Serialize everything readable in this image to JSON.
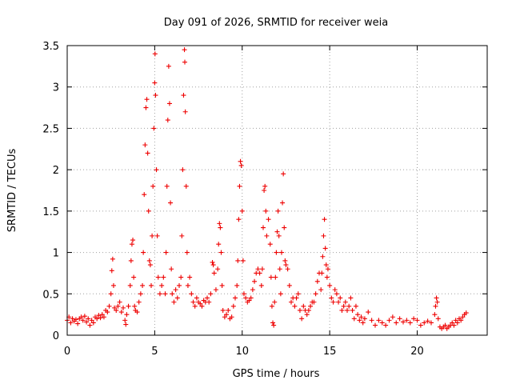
{
  "chart_data": {
    "type": "scatter",
    "title": "Day 091 of 2026, SRMTID for receiver weia",
    "xlabel": "GPS time / hours",
    "ylabel": "SRMTID / TECUs",
    "xlim": [
      0,
      24
    ],
    "ylim": [
      0,
      3.5
    ],
    "xticks": [
      0,
      5,
      10,
      15,
      20
    ],
    "xtick_labels": [
      "0",
      "5",
      "10",
      "15",
      "20"
    ],
    "yticks": [
      0,
      0.5,
      1,
      1.5,
      2,
      2.5,
      3,
      3.5
    ],
    "ytick_labels": [
      "0",
      "0.5",
      "1",
      "1.5",
      "2",
      "2.5",
      "3",
      "3.5"
    ],
    "grid": true,
    "marker": "+",
    "marker_color": "#ee0000",
    "series": [
      {
        "name": "SRMTID",
        "points": [
          [
            0.0,
            0.18
          ],
          [
            0.1,
            0.22
          ],
          [
            0.2,
            0.15
          ],
          [
            0.3,
            0.2
          ],
          [
            0.4,
            0.17
          ],
          [
            0.5,
            0.19
          ],
          [
            0.6,
            0.14
          ],
          [
            0.7,
            0.2
          ],
          [
            0.8,
            0.22
          ],
          [
            0.9,
            0.18
          ],
          [
            1.0,
            0.23
          ],
          [
            1.1,
            0.16
          ],
          [
            1.2,
            0.2
          ],
          [
            1.3,
            0.12
          ],
          [
            1.4,
            0.18
          ],
          [
            1.5,
            0.15
          ],
          [
            1.6,
            0.22
          ],
          [
            1.7,
            0.2
          ],
          [
            1.8,
            0.24
          ],
          [
            1.9,
            0.21
          ],
          [
            2.0,
            0.25
          ],
          [
            2.1,
            0.22
          ],
          [
            2.2,
            0.3
          ],
          [
            2.3,
            0.28
          ],
          [
            2.4,
            0.35
          ],
          [
            2.5,
            0.5
          ],
          [
            2.55,
            0.78
          ],
          [
            2.6,
            0.92
          ],
          [
            2.65,
            0.6
          ],
          [
            2.7,
            0.33
          ],
          [
            2.8,
            0.3
          ],
          [
            2.9,
            0.35
          ],
          [
            3.0,
            0.4
          ],
          [
            3.1,
            0.28
          ],
          [
            3.2,
            0.33
          ],
          [
            3.3,
            0.18
          ],
          [
            3.35,
            0.13
          ],
          [
            3.4,
            0.25
          ],
          [
            3.5,
            0.35
          ],
          [
            3.6,
            0.6
          ],
          [
            3.65,
            0.9
          ],
          [
            3.7,
            1.1
          ],
          [
            3.75,
            1.15
          ],
          [
            3.8,
            0.7
          ],
          [
            3.85,
            0.35
          ],
          [
            3.9,
            0.3
          ],
          [
            4.0,
            0.28
          ],
          [
            4.1,
            0.4
          ],
          [
            4.2,
            0.5
          ],
          [
            4.3,
            0.6
          ],
          [
            4.35,
            1.0
          ],
          [
            4.4,
            1.7
          ],
          [
            4.45,
            2.3
          ],
          [
            4.5,
            2.75
          ],
          [
            4.55,
            2.85
          ],
          [
            4.6,
            2.2
          ],
          [
            4.65,
            1.5
          ],
          [
            4.7,
            0.9
          ],
          [
            4.75,
            0.85
          ],
          [
            4.8,
            0.6
          ],
          [
            4.85,
            1.2
          ],
          [
            4.9,
            1.8
          ],
          [
            4.95,
            2.5
          ],
          [
            5.0,
            3.05
          ],
          [
            5.02,
            3.4
          ],
          [
            5.05,
            2.9
          ],
          [
            5.1,
            2.0
          ],
          [
            5.15,
            1.2
          ],
          [
            5.2,
            0.7
          ],
          [
            5.3,
            0.5
          ],
          [
            5.4,
            0.6
          ],
          [
            5.5,
            0.7
          ],
          [
            5.6,
            0.5
          ],
          [
            5.65,
            1.0
          ],
          [
            5.7,
            1.8
          ],
          [
            5.75,
            2.6
          ],
          [
            5.8,
            3.25
          ],
          [
            5.85,
            2.8
          ],
          [
            5.9,
            1.6
          ],
          [
            5.95,
            0.8
          ],
          [
            6.0,
            0.5
          ],
          [
            6.1,
            0.4
          ],
          [
            6.2,
            0.55
          ],
          [
            6.3,
            0.45
          ],
          [
            6.4,
            0.6
          ],
          [
            6.5,
            0.7
          ],
          [
            6.55,
            1.2
          ],
          [
            6.6,
            2.0
          ],
          [
            6.65,
            2.9
          ],
          [
            6.7,
            3.45
          ],
          [
            6.72,
            3.3
          ],
          [
            6.75,
            2.7
          ],
          [
            6.8,
            1.8
          ],
          [
            6.85,
            1.0
          ],
          [
            6.9,
            0.6
          ],
          [
            7.0,
            0.7
          ],
          [
            7.1,
            0.5
          ],
          [
            7.2,
            0.4
          ],
          [
            7.3,
            0.35
          ],
          [
            7.4,
            0.45
          ],
          [
            7.5,
            0.4
          ],
          [
            7.6,
            0.38
          ],
          [
            7.7,
            0.35
          ],
          [
            7.8,
            0.42
          ],
          [
            7.9,
            0.4
          ],
          [
            8.0,
            0.45
          ],
          [
            8.1,
            0.4
          ],
          [
            8.2,
            0.5
          ],
          [
            8.3,
            0.88
          ],
          [
            8.35,
            0.85
          ],
          [
            8.4,
            0.75
          ],
          [
            8.5,
            0.55
          ],
          [
            8.6,
            0.8
          ],
          [
            8.65,
            1.1
          ],
          [
            8.7,
            1.35
          ],
          [
            8.75,
            1.3
          ],
          [
            8.8,
            1.0
          ],
          [
            8.85,
            0.6
          ],
          [
            8.9,
            0.3
          ],
          [
            9.0,
            0.22
          ],
          [
            9.1,
            0.25
          ],
          [
            9.2,
            0.3
          ],
          [
            9.3,
            0.2
          ],
          [
            9.4,
            0.22
          ],
          [
            9.5,
            0.35
          ],
          [
            9.6,
            0.45
          ],
          [
            9.7,
            0.6
          ],
          [
            9.75,
            0.9
          ],
          [
            9.8,
            1.4
          ],
          [
            9.85,
            1.8
          ],
          [
            9.9,
            2.1
          ],
          [
            9.95,
            2.05
          ],
          [
            10.0,
            1.5
          ],
          [
            10.05,
            0.9
          ],
          [
            10.1,
            0.5
          ],
          [
            10.2,
            0.45
          ],
          [
            10.3,
            0.4
          ],
          [
            10.4,
            0.42
          ],
          [
            10.5,
            0.45
          ],
          [
            10.6,
            0.55
          ],
          [
            10.7,
            0.65
          ],
          [
            10.8,
            0.75
          ],
          [
            10.9,
            0.8
          ],
          [
            11.0,
            0.75
          ],
          [
            11.1,
            0.6
          ],
          [
            11.15,
            0.8
          ],
          [
            11.2,
            1.3
          ],
          [
            11.25,
            1.75
          ],
          [
            11.3,
            1.8
          ],
          [
            11.35,
            1.5
          ],
          [
            11.4,
            1.2
          ],
          [
            11.5,
            1.4
          ],
          [
            11.6,
            1.1
          ],
          [
            11.65,
            0.7
          ],
          [
            11.7,
            0.35
          ],
          [
            11.75,
            0.15
          ],
          [
            11.8,
            0.12
          ],
          [
            11.85,
            0.4
          ],
          [
            11.9,
            0.7
          ],
          [
            11.95,
            1.0
          ],
          [
            12.0,
            1.25
          ],
          [
            12.05,
            1.5
          ],
          [
            12.1,
            1.2
          ],
          [
            12.15,
            0.8
          ],
          [
            12.2,
            0.5
          ],
          [
            12.25,
            1.0
          ],
          [
            12.3,
            1.6
          ],
          [
            12.35,
            1.95
          ],
          [
            12.4,
            1.3
          ],
          [
            12.45,
            0.9
          ],
          [
            12.5,
            0.85
          ],
          [
            12.6,
            0.8
          ],
          [
            12.7,
            0.6
          ],
          [
            12.8,
            0.4
          ],
          [
            12.9,
            0.45
          ],
          [
            13.0,
            0.35
          ],
          [
            13.1,
            0.45
          ],
          [
            13.2,
            0.5
          ],
          [
            13.3,
            0.3
          ],
          [
            13.4,
            0.2
          ],
          [
            13.5,
            0.35
          ],
          [
            13.6,
            0.3
          ],
          [
            13.7,
            0.25
          ],
          [
            13.8,
            0.3
          ],
          [
            13.9,
            0.35
          ],
          [
            14.0,
            0.4
          ],
          [
            14.1,
            0.4
          ],
          [
            14.2,
            0.5
          ],
          [
            14.3,
            0.65
          ],
          [
            14.4,
            0.75
          ],
          [
            14.5,
            0.55
          ],
          [
            14.55,
            0.75
          ],
          [
            14.6,
            0.95
          ],
          [
            14.65,
            1.2
          ],
          [
            14.7,
            1.4
          ],
          [
            14.75,
            1.05
          ],
          [
            14.8,
            0.85
          ],
          [
            14.85,
            0.7
          ],
          [
            14.9,
            0.8
          ],
          [
            15.0,
            0.6
          ],
          [
            15.1,
            0.45
          ],
          [
            15.2,
            0.4
          ],
          [
            15.3,
            0.55
          ],
          [
            15.4,
            0.5
          ],
          [
            15.5,
            0.4
          ],
          [
            15.6,
            0.45
          ],
          [
            15.7,
            0.3
          ],
          [
            15.8,
            0.35
          ],
          [
            15.9,
            0.4
          ],
          [
            16.0,
            0.3
          ],
          [
            16.1,
            0.35
          ],
          [
            16.2,
            0.45
          ],
          [
            16.3,
            0.3
          ],
          [
            16.4,
            0.2
          ],
          [
            16.5,
            0.35
          ],
          [
            16.6,
            0.25
          ],
          [
            16.7,
            0.18
          ],
          [
            16.8,
            0.22
          ],
          [
            16.9,
            0.15
          ],
          [
            17.0,
            0.2
          ],
          [
            17.2,
            0.28
          ],
          [
            17.4,
            0.18
          ],
          [
            17.6,
            0.12
          ],
          [
            17.8,
            0.18
          ],
          [
            18.0,
            0.15
          ],
          [
            18.2,
            0.12
          ],
          [
            18.4,
            0.18
          ],
          [
            18.6,
            0.22
          ],
          [
            18.8,
            0.15
          ],
          [
            19.0,
            0.2
          ],
          [
            19.2,
            0.16
          ],
          [
            19.4,
            0.18
          ],
          [
            19.6,
            0.15
          ],
          [
            19.8,
            0.2
          ],
          [
            20.0,
            0.18
          ],
          [
            20.2,
            0.12
          ],
          [
            20.4,
            0.15
          ],
          [
            20.6,
            0.17
          ],
          [
            20.8,
            0.15
          ],
          [
            21.0,
            0.25
          ],
          [
            21.05,
            0.35
          ],
          [
            21.1,
            0.45
          ],
          [
            21.15,
            0.4
          ],
          [
            21.2,
            0.2
          ],
          [
            21.3,
            0.1
          ],
          [
            21.4,
            0.08
          ],
          [
            21.5,
            0.1
          ],
          [
            21.6,
            0.12
          ],
          [
            21.7,
            0.08
          ],
          [
            21.8,
            0.1
          ],
          [
            21.9,
            0.12
          ],
          [
            22.0,
            0.15
          ],
          [
            22.1,
            0.12
          ],
          [
            22.2,
            0.18
          ],
          [
            22.3,
            0.15
          ],
          [
            22.4,
            0.2
          ],
          [
            22.5,
            0.18
          ],
          [
            22.6,
            0.22
          ],
          [
            22.7,
            0.25
          ],
          [
            22.8,
            0.27
          ]
        ]
      }
    ]
  }
}
